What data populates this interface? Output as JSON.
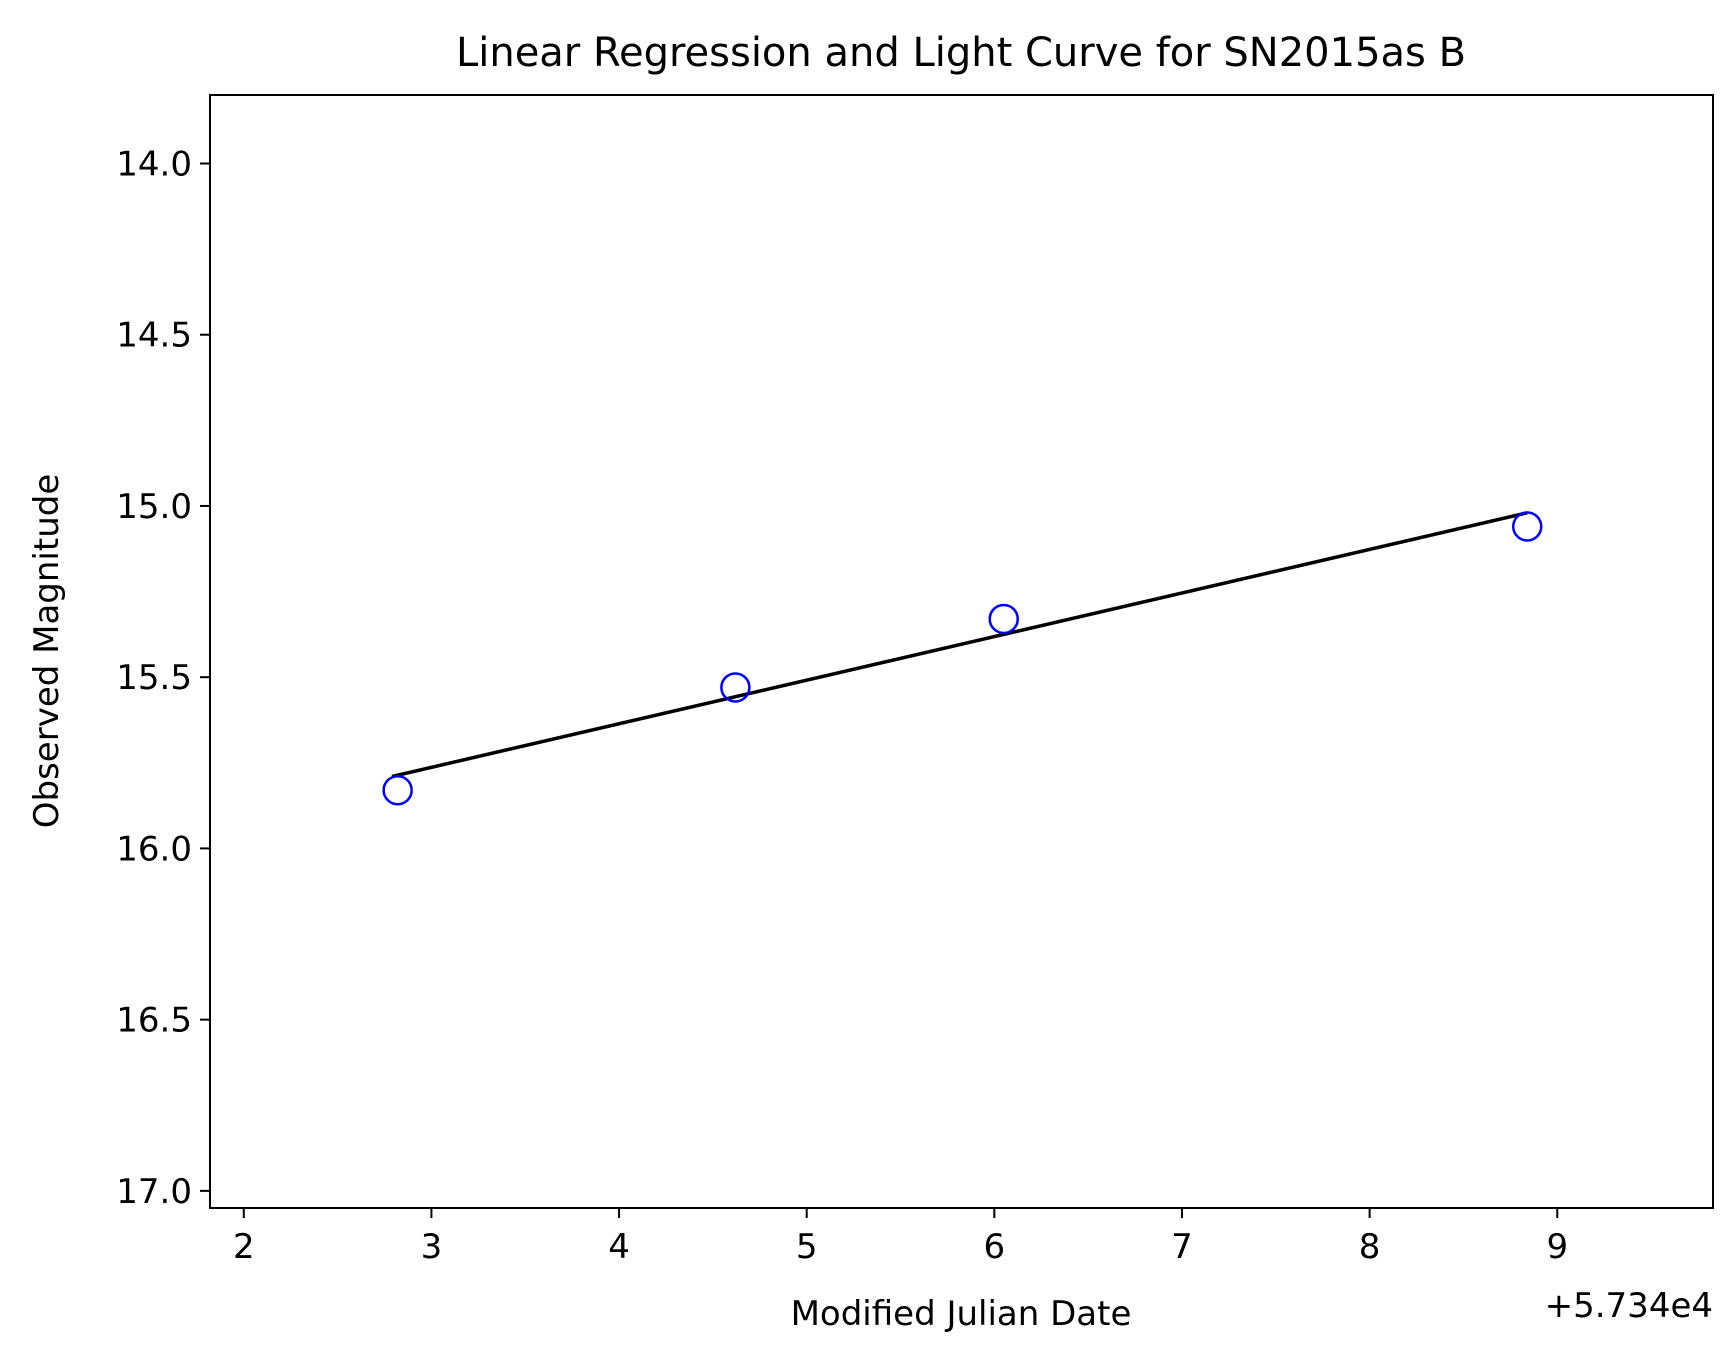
{
  "chart_data": {
    "type": "scatter",
    "title": "Linear Regression and Light Curve for SN2015as B",
    "xlabel": "Modified Julian Date",
    "ylabel": "Observed Magnitude",
    "x_offset_label": "+5.734e4",
    "x_offset": 57340,
    "xlim": [
      57341.82,
      57349.83
    ],
    "ylim": [
      17.05,
      13.8
    ],
    "y_inverted": true,
    "grid": false,
    "legend": "none",
    "x_ticks": [
      57342,
      57343,
      57344,
      57345,
      57346,
      57347,
      57348,
      57349
    ],
    "x_tick_labels": [
      "2",
      "3",
      "4",
      "5",
      "6",
      "7",
      "8",
      "9"
    ],
    "y_ticks": [
      14.0,
      14.5,
      15.0,
      15.5,
      16.0,
      16.5,
      17.0
    ],
    "y_tick_labels": [
      "14.0",
      "14.5",
      "15.0",
      "15.5",
      "16.0",
      "16.5",
      "17.0"
    ],
    "series": [
      {
        "kind": "scatter",
        "marker": "open-circle",
        "color": "#0000ff",
        "points": [
          {
            "x": 57342.82,
            "y": 15.83
          },
          {
            "x": 57344.62,
            "y": 15.53
          },
          {
            "x": 57346.05,
            "y": 15.33
          },
          {
            "x": 57348.84,
            "y": 15.06
          }
        ]
      },
      {
        "kind": "line",
        "color": "#000000",
        "points": [
          {
            "x": 57342.79,
            "y": 15.79
          },
          {
            "x": 57348.84,
            "y": 15.02
          }
        ]
      }
    ]
  }
}
